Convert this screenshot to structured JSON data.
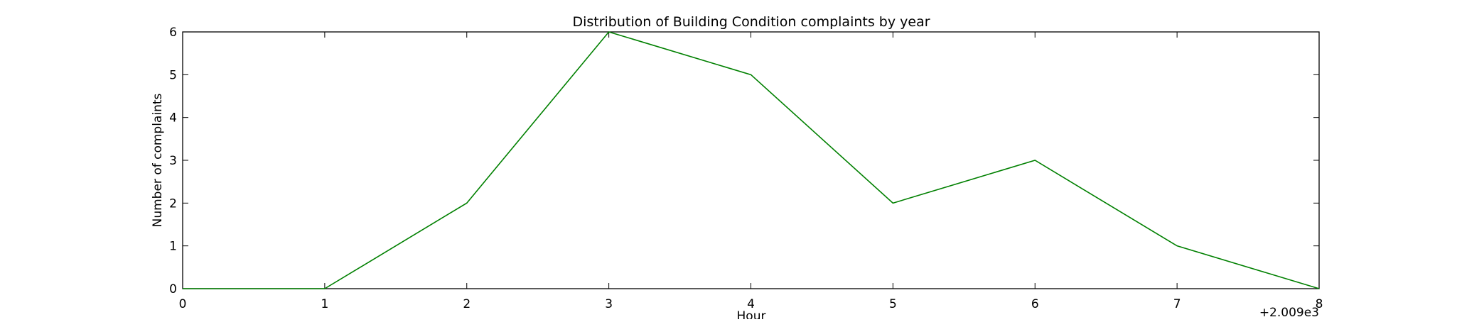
{
  "chart_data": {
    "type": "line",
    "title": "Distribution of  Building Condition complaints by year",
    "xlabel": "Hour",
    "ylabel": "Number of complaints",
    "x_offset_label": "+2.009e3",
    "x": [
      0,
      1,
      2,
      3,
      4,
      5,
      6,
      7,
      8
    ],
    "series": [
      {
        "values": [
          0,
          0,
          2,
          6,
          5,
          2,
          3,
          1,
          0
        ],
        "color": "#008000"
      }
    ],
    "xlim": [
      0,
      8
    ],
    "ylim": [
      0,
      6
    ],
    "xticks": [
      0,
      1,
      2,
      3,
      4,
      5,
      6,
      7,
      8
    ],
    "yticks": [
      0,
      1,
      2,
      3,
      4,
      5,
      6
    ],
    "grid": false,
    "legend": "none"
  }
}
